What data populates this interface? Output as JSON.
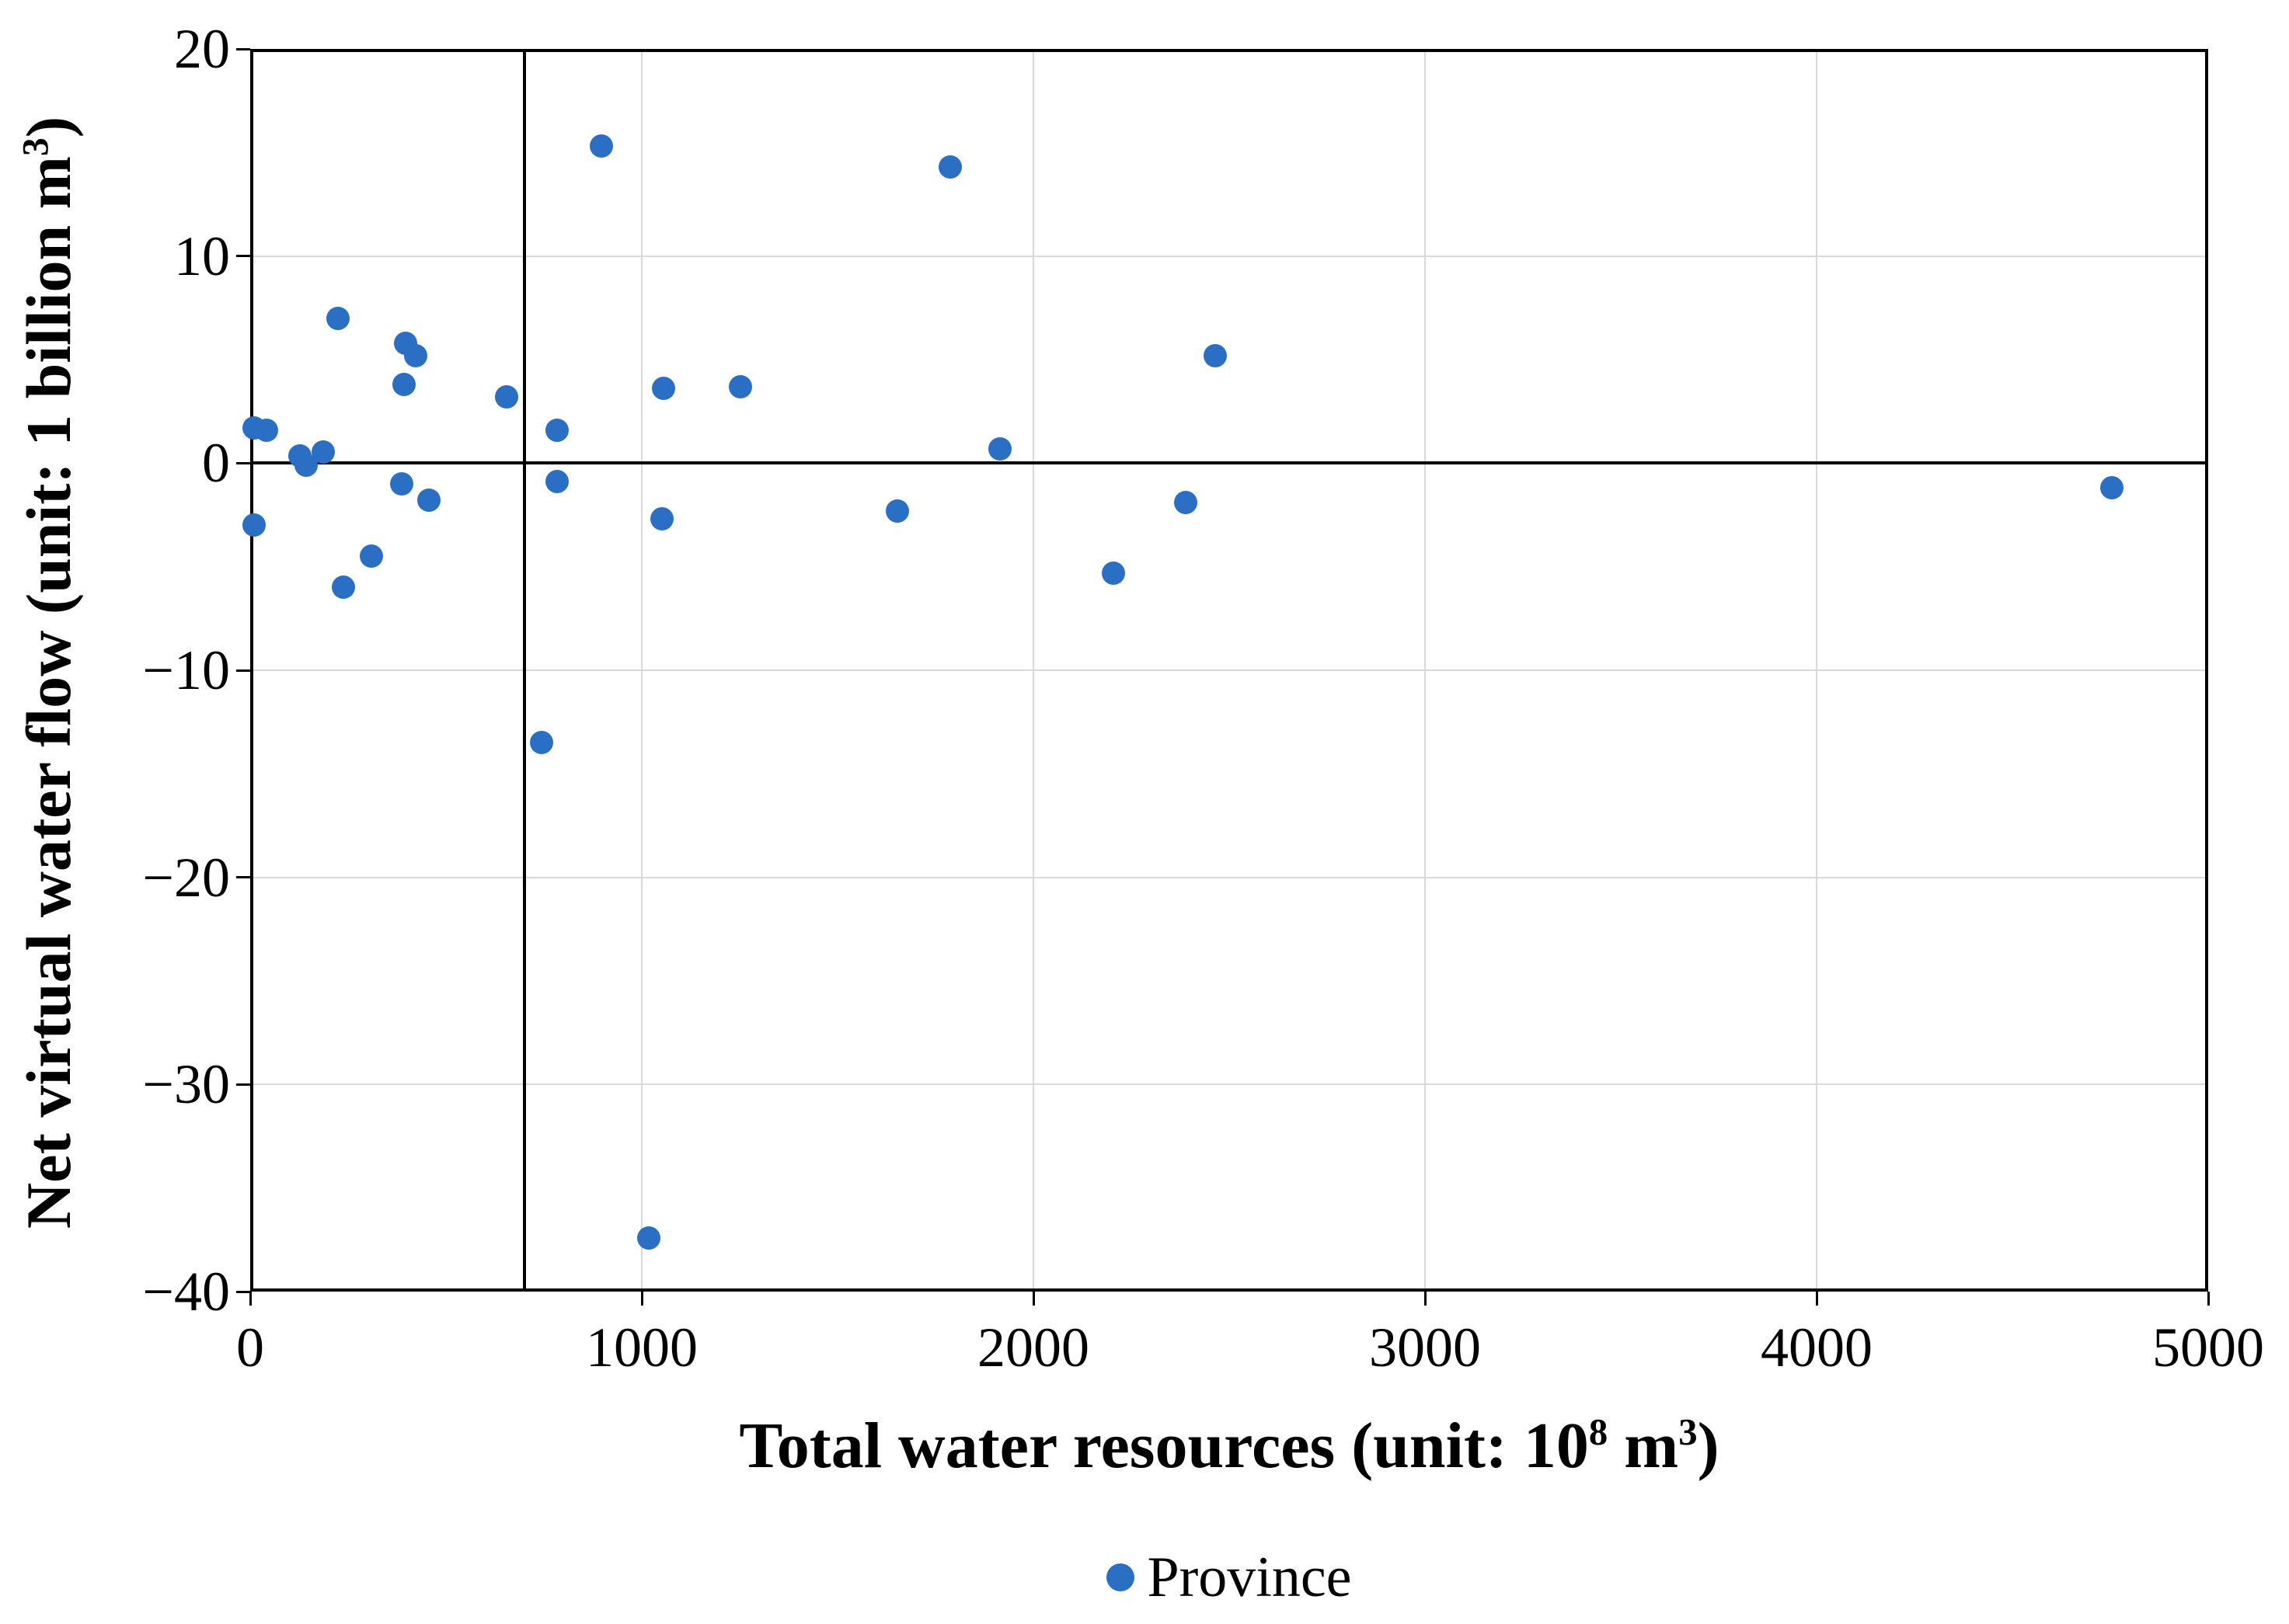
{
  "colors": {
    "point": "#2B6FC5",
    "grid": "#D9D9D9",
    "axis": "#000000",
    "background": "#FFFFFF"
  },
  "chart_data": {
    "type": "scatter",
    "title": "",
    "xlabel_parts": {
      "pre": "Total water resources (unit: 10",
      "sup1": "8",
      "mid": " m",
      "sup2": "3",
      "post": ")"
    },
    "ylabel_parts": {
      "pre": "Net virtual water flow (unit: 1 billion m",
      "sup1": "3",
      "post": ")"
    },
    "xlim": [
      0,
      5000
    ],
    "ylim": [
      -40,
      20
    ],
    "x_ticks": [
      0,
      1000,
      2000,
      3000,
      4000,
      5000
    ],
    "y_ticks": [
      20,
      10,
      0,
      -10,
      -20,
      -30,
      -40
    ],
    "grid": true,
    "legend_position": "bottom-center",
    "reference_lines": {
      "vertical_x": 700,
      "horizontal_y": 0
    },
    "series": [
      {
        "name": "Province",
        "marker": "circle",
        "points": [
          [
            10,
            1.7
          ],
          [
            42,
            1.6
          ],
          [
            10,
            -3.0
          ],
          [
            127,
            0.35
          ],
          [
            143,
            -0.1
          ],
          [
            187,
            0.55
          ],
          [
            224,
            7.0
          ],
          [
            238,
            -6.0
          ],
          [
            310,
            -4.5
          ],
          [
            387,
            -1.0
          ],
          [
            393,
            3.8
          ],
          [
            397,
            5.8
          ],
          [
            423,
            5.2
          ],
          [
            456,
            -1.8
          ],
          [
            655,
            3.2
          ],
          [
            744,
            -13.5
          ],
          [
            784,
            1.6
          ],
          [
            784,
            -0.9
          ],
          [
            897,
            15.3
          ],
          [
            1018,
            -37.4
          ],
          [
            1052,
            -2.7
          ],
          [
            1056,
            3.6
          ],
          [
            1252,
            3.7
          ],
          [
            1653,
            -2.3
          ],
          [
            1788,
            14.3
          ],
          [
            1915,
            0.7
          ],
          [
            2204,
            -5.3
          ],
          [
            2389,
            -1.9
          ],
          [
            2464,
            5.2
          ],
          [
            4754,
            -1.2
          ]
        ]
      }
    ],
    "legend": {
      "label": "Province"
    }
  }
}
